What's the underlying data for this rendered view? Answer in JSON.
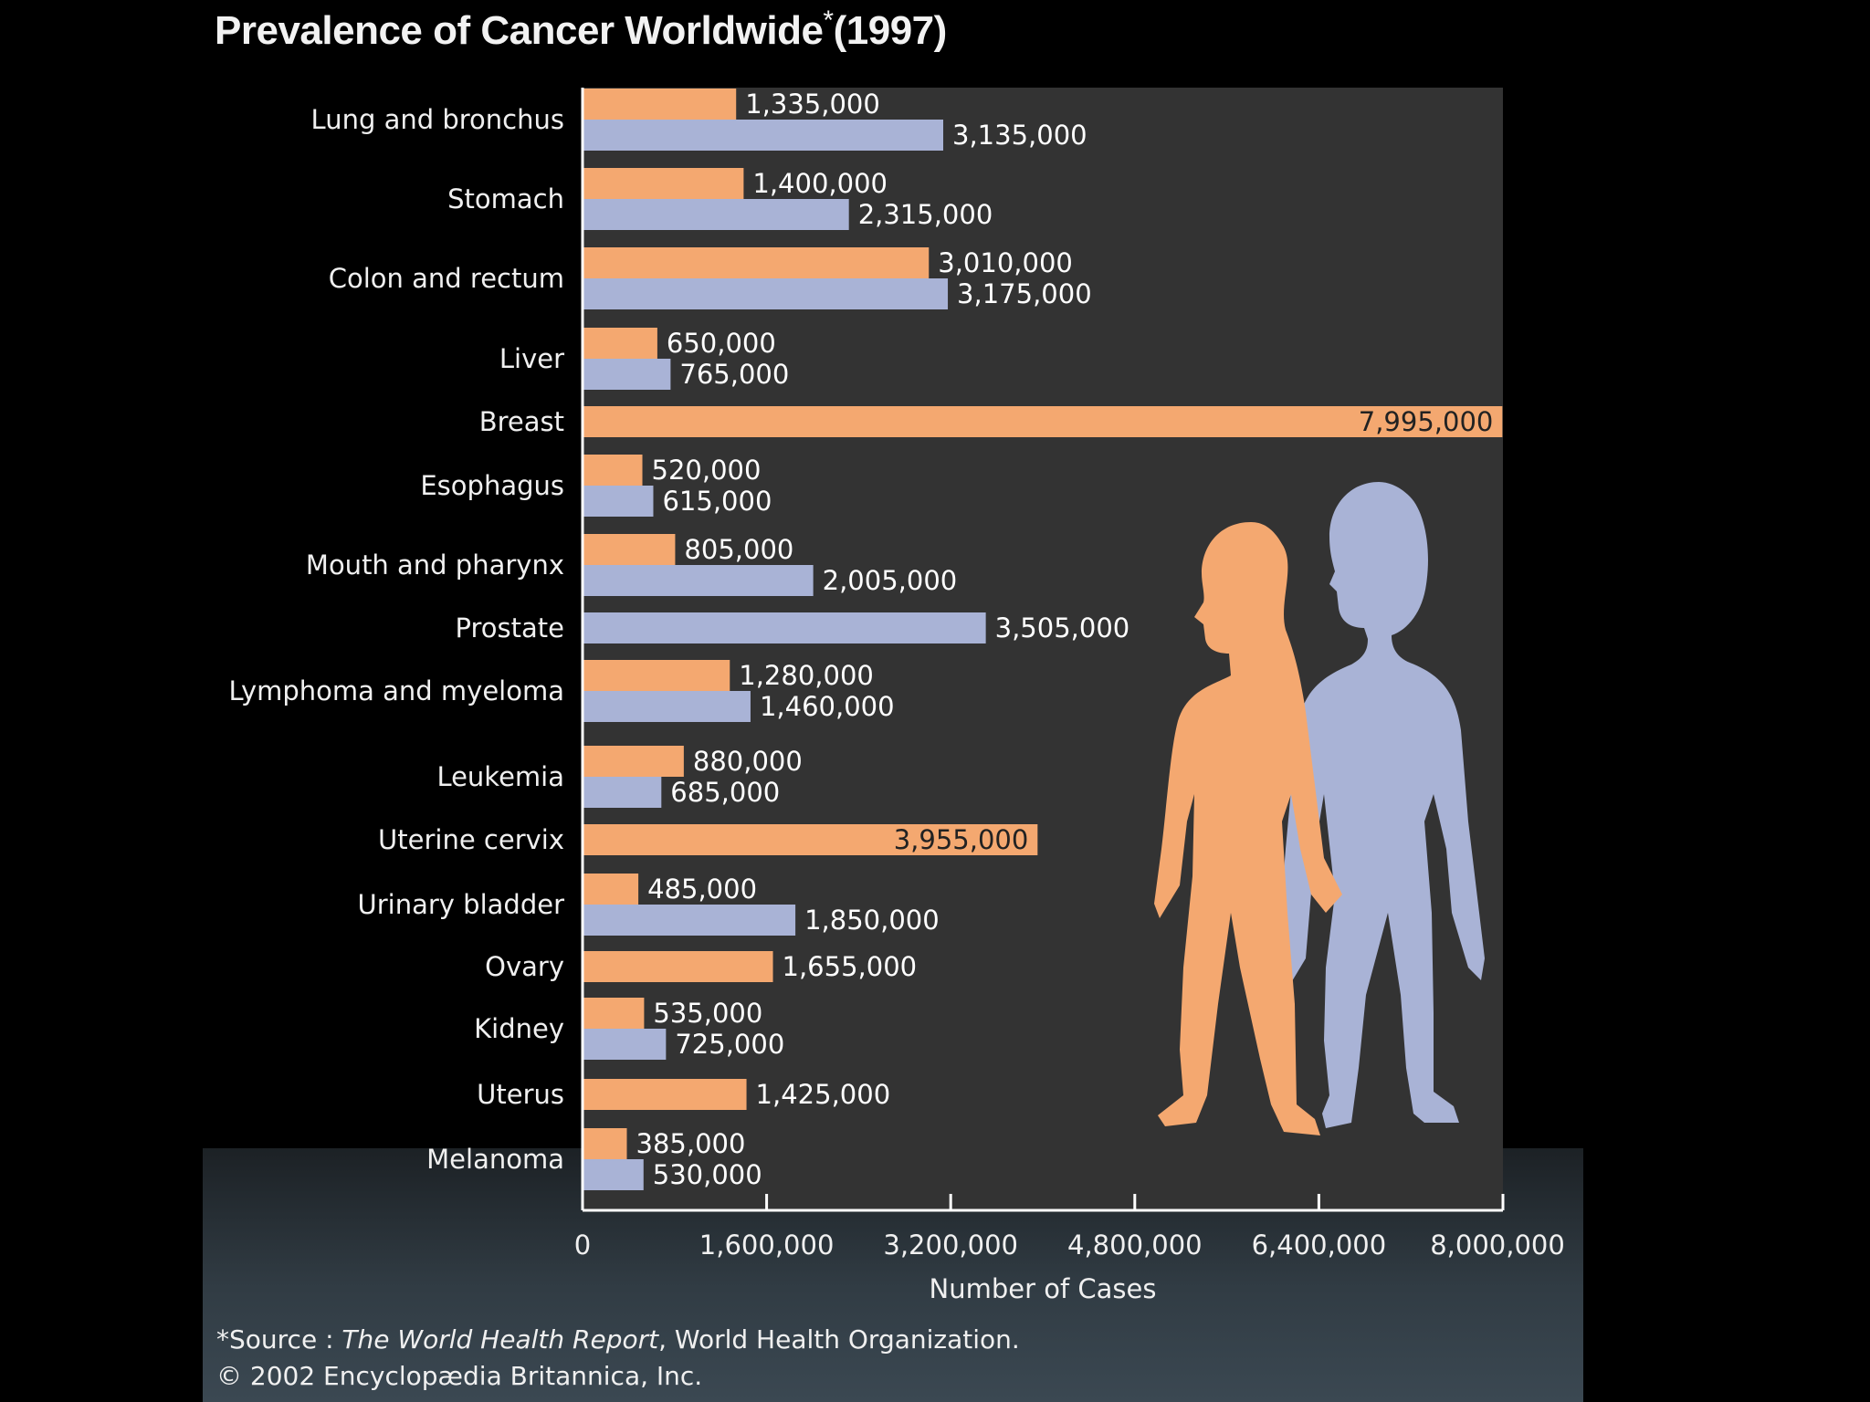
{
  "title": {
    "main": "Prevalence of Cancer Worldwide",
    "marker": "*",
    "year": "(1997)"
  },
  "footer": {
    "source_prefix": "*Source : ",
    "source_title": "The World Health Report",
    "source_org": ", World Health Organization.",
    "copyright": "© 2002 Encyclopædia Britannica, Inc."
  },
  "colors": {
    "female": "#f4a870",
    "male": "#a9b3d6",
    "plot_bg": "#333333",
    "page_bg": "#000000"
  },
  "illustration": {
    "female_figure": "female-silhouette",
    "male_figure": "male-silhouette"
  },
  "chart_data": {
    "type": "bar",
    "orientation": "horizontal",
    "title": "Prevalence of Cancer Worldwide* (1997)",
    "xlabel": "Number of Cases",
    "ylabel": "",
    "xlim": [
      0,
      8000000
    ],
    "xticks": [
      0,
      1600000,
      3200000,
      4800000,
      6400000,
      8000000
    ],
    "xtick_labels": [
      "0",
      "1,600,000",
      "3,200,000",
      "4,800,000",
      "6,400,000",
      "8,000,000"
    ],
    "grid": false,
    "legend": "none (series indicated by female and male silhouettes)",
    "categories": [
      "Lung and bronchus",
      "Stomach",
      "Colon and rectum",
      "Liver",
      "Breast",
      "Esophagus",
      "Mouth and pharynx",
      "Prostate",
      "Lymphoma and myeloma",
      "Leukemia",
      "Uterine cervix",
      "Urinary bladder",
      "Ovary",
      "Kidney",
      "Uterus",
      "Melanoma"
    ],
    "series": [
      {
        "color": "#f4a870",
        "values": [
          1335000,
          1400000,
          3010000,
          650000,
          7995000,
          520000,
          805000,
          null,
          1280000,
          880000,
          3955000,
          485000,
          1655000,
          535000,
          1425000,
          385000
        ],
        "labels": [
          "1,335,000",
          "1,400,000",
          "3,010,000",
          "650,000",
          "7,995,000",
          "520,000",
          "805,000",
          null,
          "1,280,000",
          "880,000",
          "3,955,000",
          "485,000",
          "1,655,000",
          "535,000",
          "1,425,000",
          "385,000"
        ]
      },
      {
        "color": "#a9b3d6",
        "values": [
          3135000,
          2315000,
          3175000,
          765000,
          null,
          615000,
          2005000,
          3505000,
          1460000,
          685000,
          null,
          1850000,
          null,
          725000,
          null,
          530000
        ],
        "labels": [
          "3,135,000",
          "2,315,000",
          "3,175,000",
          "765,000",
          null,
          "615,000",
          "2,005,000",
          "3,505,000",
          "1,460,000",
          "685,000",
          null,
          "1,850,000",
          null,
          "725,000",
          null,
          "530,000"
        ]
      }
    ]
  }
}
